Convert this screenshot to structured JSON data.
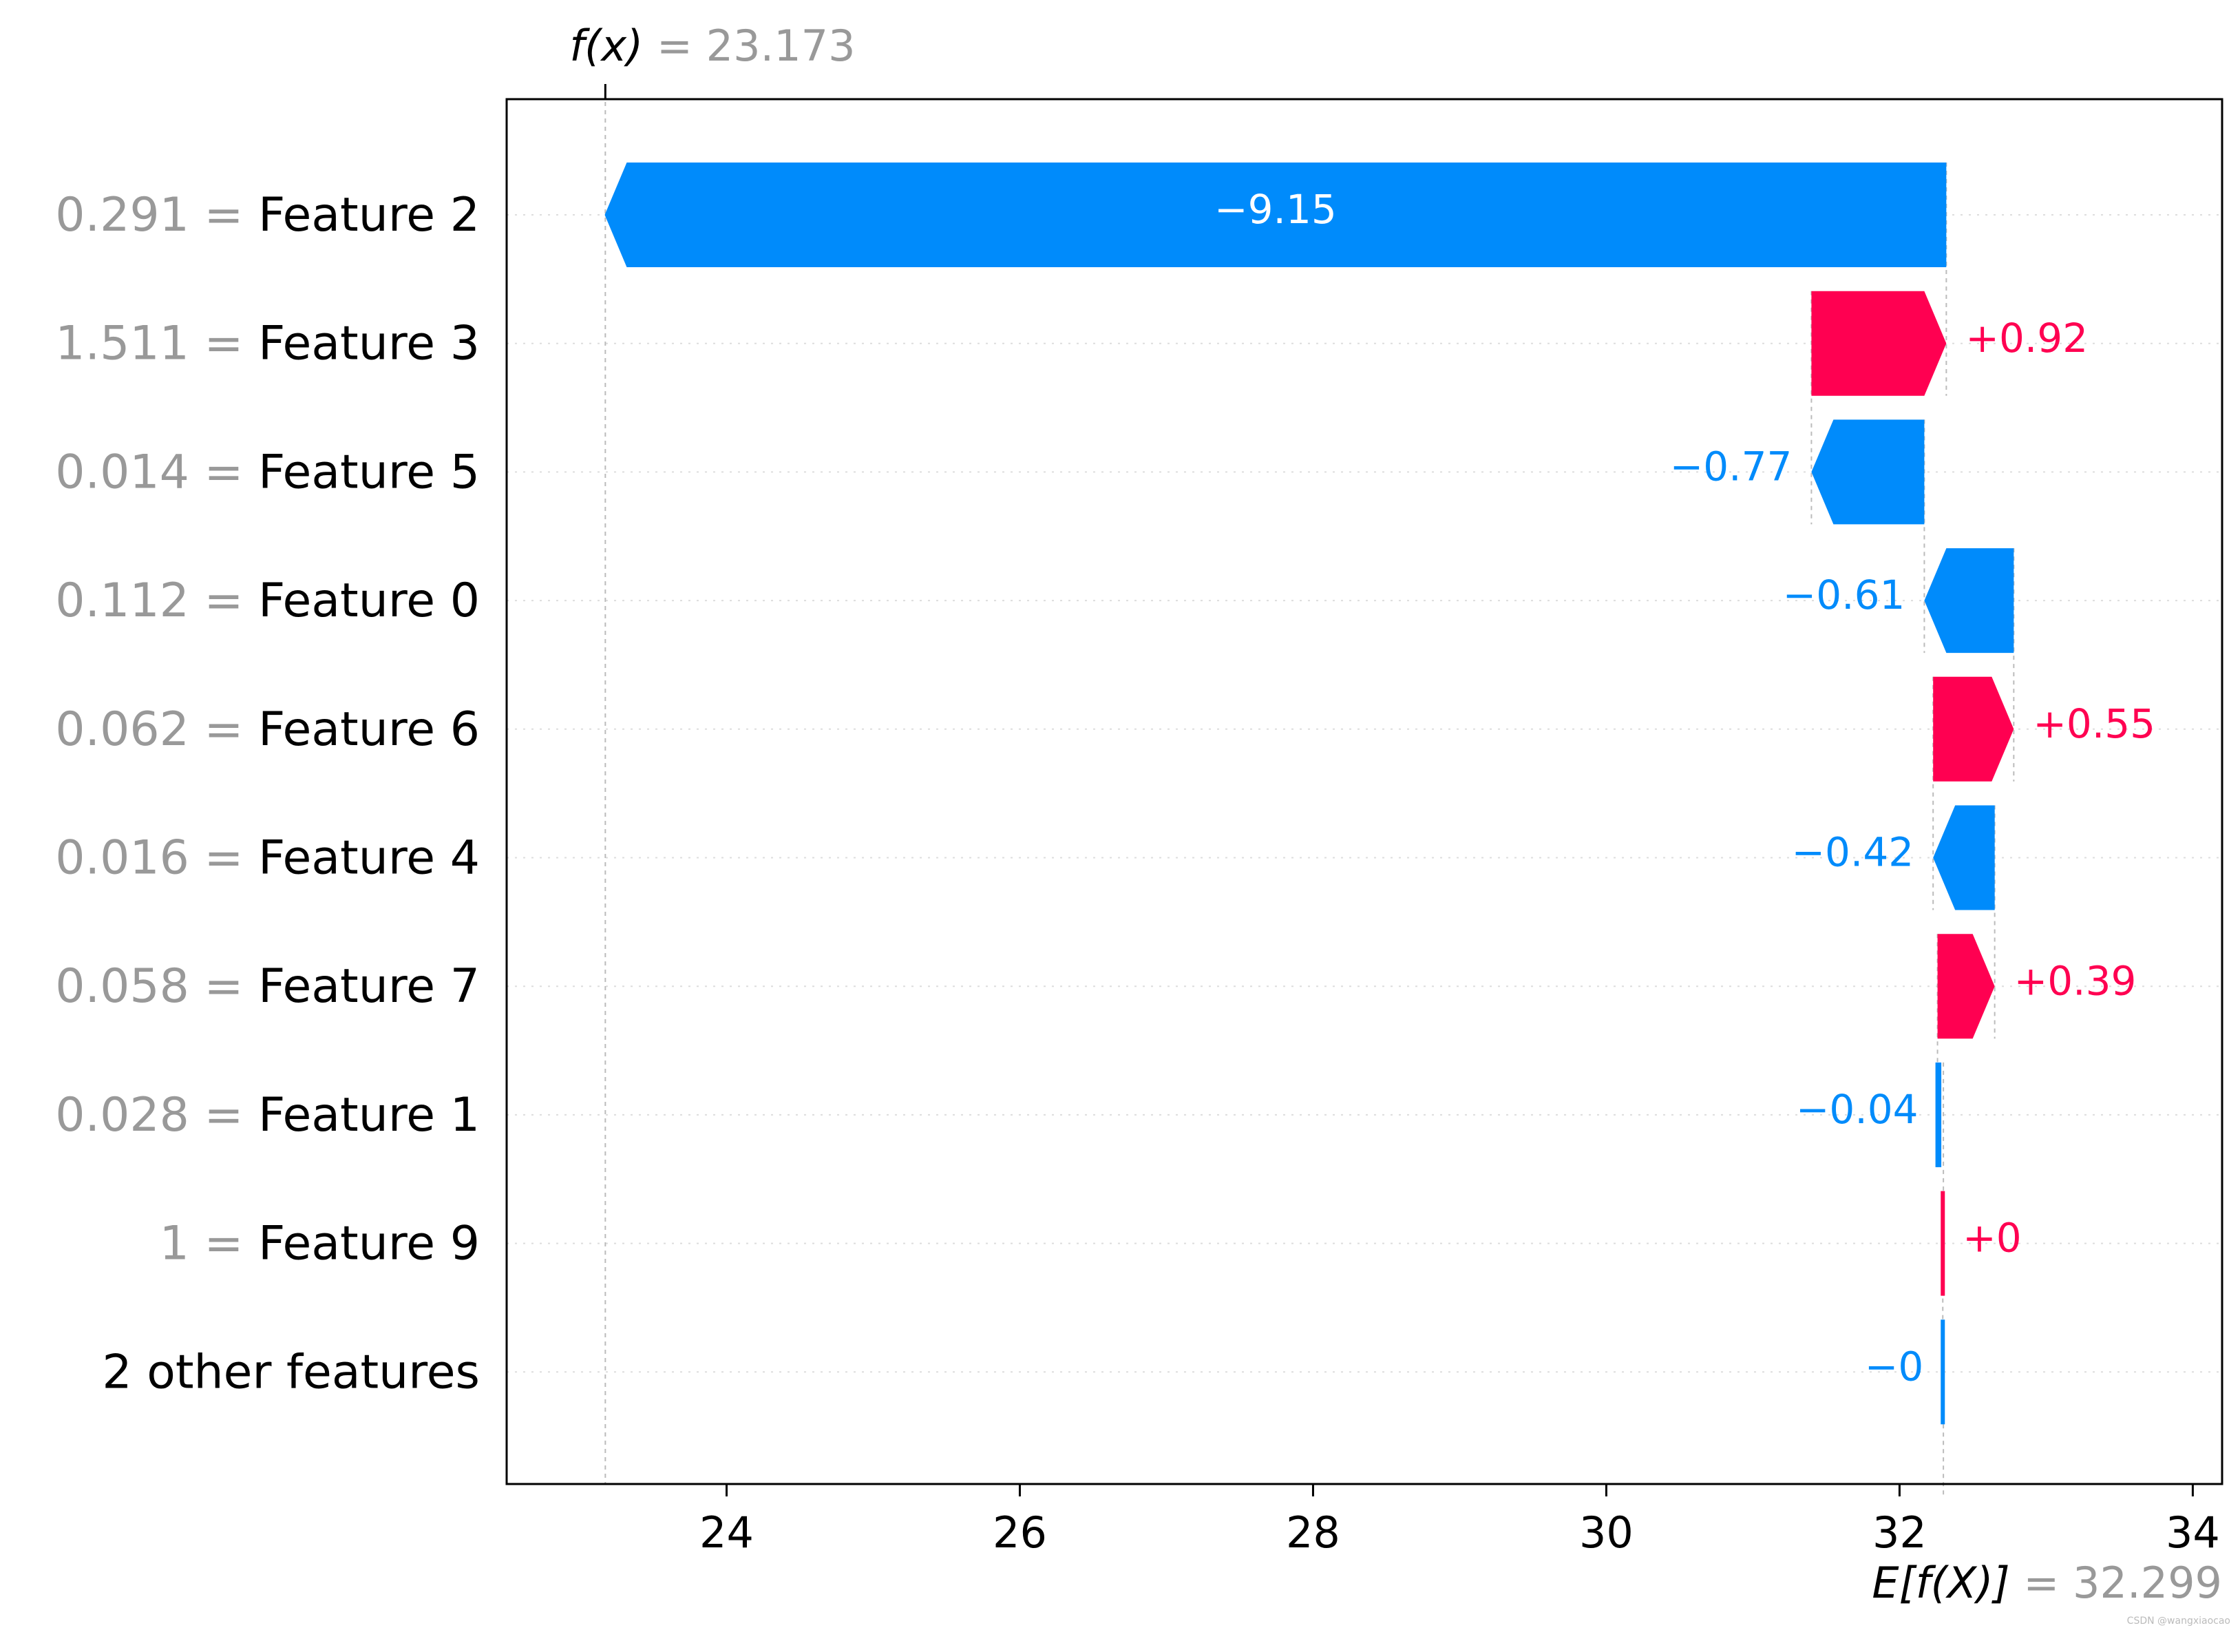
{
  "chart_data": {
    "type": "waterfall",
    "base_value": 32.299,
    "output_value": 23.173,
    "header_top": {
      "label": "f(x)",
      "value": "23.173"
    },
    "header_bottom": {
      "label": "E[f(X)]",
      "value": "32.299"
    },
    "xlim": [
      22.5,
      34.2
    ],
    "xticks": [
      "24",
      "26",
      "28",
      "30",
      "32",
      "34"
    ],
    "rows": [
      {
        "value_text": "0.291",
        "feature": "Feature 2",
        "shap": -9.15,
        "label": "−9.15"
      },
      {
        "value_text": "1.511",
        "feature": "Feature 3",
        "shap": 0.92,
        "label": "+0.92"
      },
      {
        "value_text": "0.014",
        "feature": "Feature 5",
        "shap": -0.77,
        "label": "−0.77"
      },
      {
        "value_text": "0.112",
        "feature": "Feature 0",
        "shap": -0.61,
        "label": "−0.61"
      },
      {
        "value_text": "0.062",
        "feature": "Feature 6",
        "shap": 0.55,
        "label": "+0.55"
      },
      {
        "value_text": "0.016",
        "feature": "Feature 4",
        "shap": -0.42,
        "label": "−0.42"
      },
      {
        "value_text": "0.058",
        "feature": "Feature 7",
        "shap": 0.39,
        "label": "+0.39"
      },
      {
        "value_text": "0.028",
        "feature": "Feature 1",
        "shap": -0.04,
        "label": "−0.04"
      },
      {
        "value_text": "1",
        "feature": "Feature 9",
        "shap": 0.004,
        "label": "+0"
      },
      {
        "value_text": "",
        "feature": "2 other features",
        "shap": -0.004,
        "label": "−0"
      }
    ],
    "colors": {
      "positive": "#ff0051",
      "negative": "#008bfb",
      "label_inside": "#ffffff",
      "muted": "#999999"
    },
    "credit": "CSDN @wangxiaocao"
  }
}
